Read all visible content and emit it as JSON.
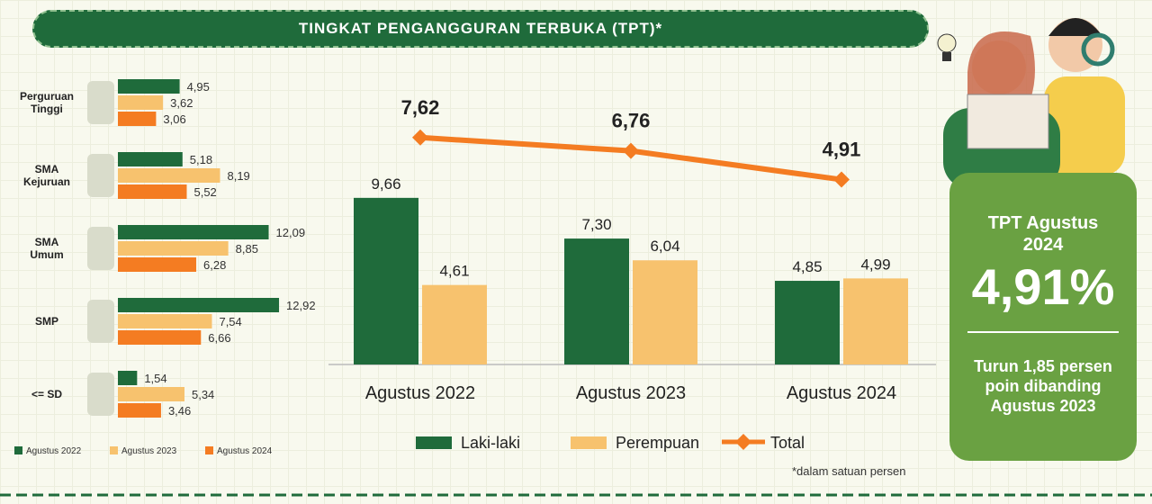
{
  "title": "TINGKAT PENGANGGURAN TERBUKA (TPT)*",
  "chart_data": [
    {
      "type": "hbar",
      "categories": [
        "Perguruan Tinggi",
        "SMA Kejuruan",
        "SMA Umum",
        "SMP",
        "<= SD"
      ],
      "xlim": [
        0,
        14
      ],
      "series": [
        {
          "name": "Agustus 2022",
          "color": "#1f6b3b",
          "values": [
            4.95,
            5.18,
            12.09,
            12.92,
            1.54
          ],
          "value_labels": [
            "4,95",
            "5,18",
            "12,09",
            "12,92",
            "1,54"
          ]
        },
        {
          "name": "Agustus 2023",
          "color": "#f7c26e",
          "values": [
            3.62,
            8.19,
            8.85,
            7.54,
            5.34
          ],
          "value_labels": [
            "3,62",
            "8,19",
            "8,85",
            "7,54",
            "5,34"
          ]
        },
        {
          "name": "Agustus 2024",
          "color": "#f47c22",
          "values": [
            3.06,
            5.52,
            6.28,
            6.66,
            3.46
          ],
          "value_labels": [
            "3,06",
            "5,52",
            "6,28",
            "6,66",
            "3,46"
          ]
        }
      ]
    },
    {
      "type": "bar",
      "categories": [
        "Agustus 2022",
        "Agustus 2023",
        "Agustus 2024"
      ],
      "ylim": [
        0,
        18
      ],
      "y2lim": [
        -7,
        13
      ],
      "series": [
        {
          "name": "Laki-laki",
          "color": "#1f6b3b",
          "values": [
            9.66,
            7.3,
            4.85
          ],
          "value_labels": [
            "9,66",
            "7,30",
            "4,85"
          ]
        },
        {
          "name": "Perempuan",
          "color": "#f7c26e",
          "values": [
            4.61,
            6.04,
            4.99
          ],
          "value_labels": [
            "4,61",
            "6,04",
            "4,99"
          ]
        },
        {
          "name": "Total",
          "type": "line",
          "axis": "y2",
          "color": "#f47c22",
          "values": [
            7.62,
            6.76,
            4.91
          ],
          "value_labels": [
            "7,62",
            "6,76",
            "4,91"
          ]
        }
      ],
      "note": "*dalam satuan persen"
    }
  ],
  "panel": {
    "heading": "TPT Agustus 2024",
    "value": "4,91%",
    "text": "Turun 1,85 persen poin dibanding Agustus 2023"
  }
}
